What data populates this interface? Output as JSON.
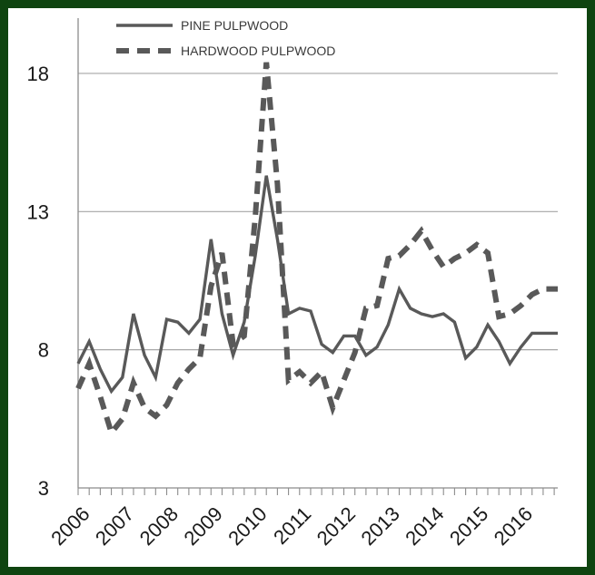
{
  "chart_data": {
    "type": "line",
    "title": "",
    "xlabel": "",
    "ylabel": "",
    "ylim": [
      3,
      20
    ],
    "yticks": [
      3,
      8,
      13,
      18
    ],
    "x_tick_labels": [
      "2006",
      "2007",
      "2008",
      "2009",
      "2010",
      "2011",
      "2012",
      "2013",
      "2014",
      "2015",
      "2016"
    ],
    "x_range": [
      2006,
      2016.83
    ],
    "grid": "horizontal",
    "legend_position": "top",
    "series": [
      {
        "name": "PINE PULPWOOD",
        "style": "solid",
        "color": "#595959",
        "x": [
          2006.0,
          2006.25,
          2006.5,
          2006.75,
          2007.0,
          2007.25,
          2007.5,
          2007.75,
          2008.0,
          2008.25,
          2008.5,
          2008.75,
          2009.0,
          2009.25,
          2009.5,
          2009.75,
          2010.0,
          2010.25,
          2010.5,
          2010.75,
          2011.0,
          2011.25,
          2011.5,
          2011.75,
          2012.0,
          2012.25,
          2012.5,
          2012.75,
          2013.0,
          2013.25,
          2013.5,
          2013.75,
          2014.0,
          2014.25,
          2014.5,
          2014.75,
          2015.0,
          2015.25,
          2015.5,
          2015.75,
          2016.0,
          2016.25,
          2016.5,
          2016.75
        ],
        "values": [
          7.5,
          8.3,
          7.3,
          6.5,
          7.0,
          9.3,
          7.8,
          7.0,
          9.1,
          9.0,
          8.6,
          9.1,
          12.0,
          9.3,
          7.8,
          9.0,
          11.4,
          14.3,
          12.0,
          9.3,
          9.5,
          9.4,
          8.2,
          7.9,
          8.5,
          8.5,
          7.8,
          8.1,
          8.9,
          10.2,
          9.5,
          9.3,
          9.2,
          9.3,
          9.0,
          7.7,
          8.1,
          8.9,
          8.3,
          7.5,
          8.1,
          8.6,
          8.6,
          8.6
        ],
        "end": 2016.83
      },
      {
        "name": "HARDWOOD PULPWOOD",
        "style": "dashed",
        "color": "#595959",
        "x": [
          2006.0,
          2006.25,
          2006.5,
          2006.75,
          2007.0,
          2007.25,
          2007.5,
          2007.75,
          2008.0,
          2008.25,
          2008.5,
          2008.75,
          2009.0,
          2009.25,
          2009.5,
          2009.75,
          2010.0,
          2010.25,
          2010.5,
          2010.75,
          2011.0,
          2011.25,
          2011.5,
          2011.75,
          2012.0,
          2012.25,
          2012.5,
          2012.75,
          2013.0,
          2013.25,
          2013.5,
          2013.75,
          2014.0,
          2014.25,
          2014.5,
          2014.75,
          2015.0,
          2015.25,
          2015.5,
          2015.75,
          2016.0,
          2016.25,
          2016.5,
          2016.75
        ],
        "values": [
          6.6,
          7.5,
          6.3,
          5.0,
          5.5,
          6.8,
          5.9,
          5.6,
          6.0,
          6.8,
          7.3,
          7.7,
          10.3,
          11.5,
          8.2,
          8.5,
          12.8,
          18.4,
          14.0,
          6.9,
          7.2,
          6.8,
          7.2,
          5.9,
          6.9,
          7.9,
          9.5,
          9.6,
          11.3,
          11.4,
          11.8,
          12.3,
          11.6,
          11.0,
          11.3,
          11.5,
          11.8,
          11.5,
          9.2,
          9.3,
          9.6,
          10.0,
          10.2,
          10.2
        ],
        "end": 2016.83
      }
    ]
  }
}
